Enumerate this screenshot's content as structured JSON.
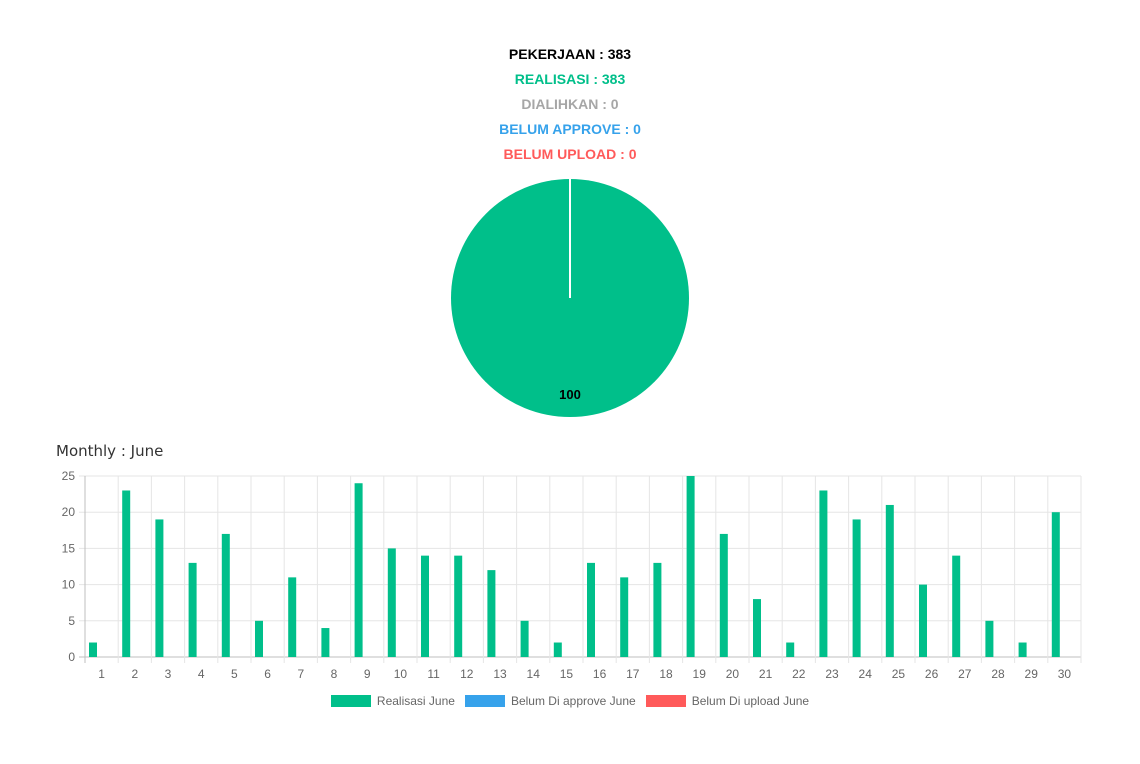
{
  "stats": {
    "pekerjaan": "PEKERJAAN : 383",
    "realisasi": "REALISASI : 383",
    "dialihkan": "DIALIHKAN : 0",
    "belum_approve": "BELUM APPROVE : 0",
    "belum_upload": "BELUM UPLOAD : 0"
  },
  "colors": {
    "realisasi": "#00bf8a",
    "dialihkan": "#a6a6a6",
    "belum_approve": "#36a2eb",
    "belum_upload": "#ff5a5a",
    "pekerjaan": "#000000"
  },
  "chart_data": [
    {
      "type": "pie",
      "slices": [
        {
          "label": "Realisasi",
          "value": 100,
          "data_label": "100"
        }
      ]
    },
    {
      "type": "bar",
      "title": "Monthly : June",
      "categories": [
        "1",
        "2",
        "3",
        "4",
        "5",
        "6",
        "7",
        "8",
        "9",
        "10",
        "11",
        "12",
        "13",
        "14",
        "15",
        "16",
        "17",
        "18",
        "19",
        "20",
        "21",
        "22",
        "23",
        "24",
        "25",
        "26",
        "27",
        "28",
        "29",
        "30"
      ],
      "series": [
        {
          "name": "Realisasi June",
          "values": [
            2,
            23,
            19,
            13,
            17,
            5,
            11,
            4,
            24,
            15,
            14,
            14,
            12,
            5,
            2,
            13,
            11,
            13,
            25,
            17,
            8,
            2,
            23,
            19,
            21,
            10,
            14,
            5,
            2,
            20
          ]
        },
        {
          "name": "Belum Di approve June",
          "values": [
            0,
            0,
            0,
            0,
            0,
            0,
            0,
            0,
            0,
            0,
            0,
            0,
            0,
            0,
            0,
            0,
            0,
            0,
            0,
            0,
            0,
            0,
            0,
            0,
            0,
            0,
            0,
            0,
            0,
            0
          ]
        },
        {
          "name": "Belum Di upload June",
          "values": [
            0,
            0,
            0,
            0,
            0,
            0,
            0,
            0,
            0,
            0,
            0,
            0,
            0,
            0,
            0,
            0,
            0,
            0,
            0,
            0,
            0,
            0,
            0,
            0,
            0,
            0,
            0,
            0,
            0,
            0
          ]
        }
      ],
      "ylim": [
        0,
        25
      ],
      "yticks": [
        0,
        5,
        10,
        15,
        20,
        25
      ],
      "grid": true,
      "legend": "bottom"
    }
  ]
}
